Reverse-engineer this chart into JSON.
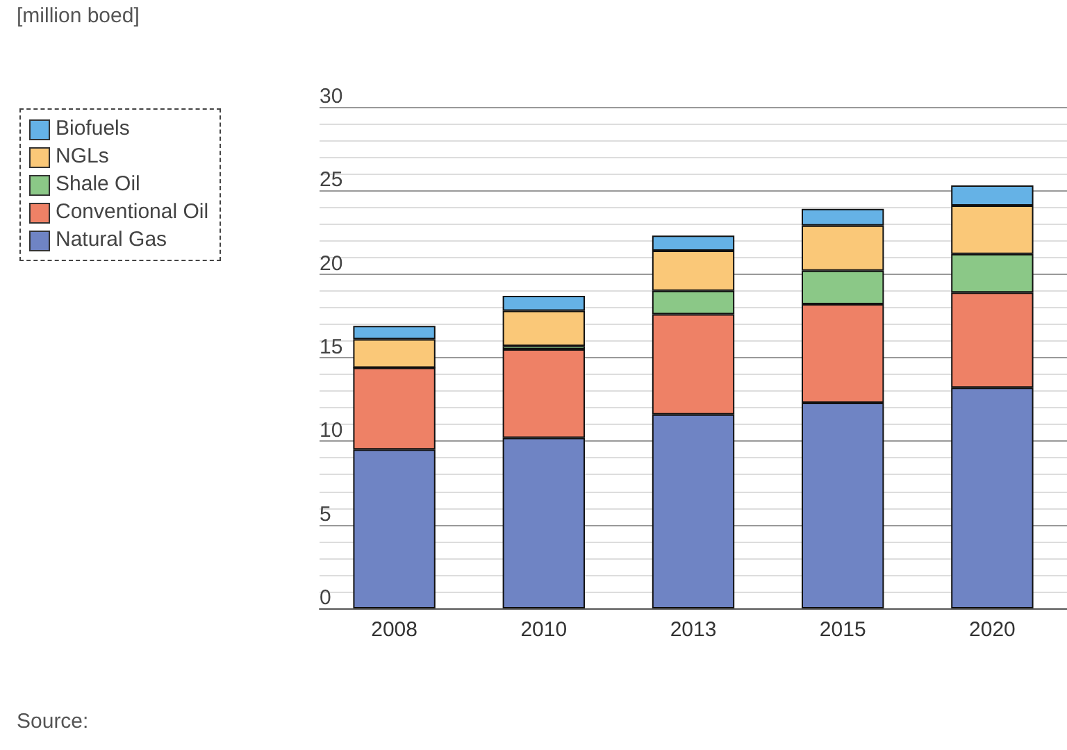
{
  "chart_data": {
    "type": "bar",
    "stacked": true,
    "annotations": [
      "[million boed]",
      "Source:"
    ],
    "categories": [
      "2008",
      "2010",
      "2013",
      "2015",
      "2020"
    ],
    "series": [
      {
        "name": "Natural Gas",
        "color": "#6f84c4",
        "values": [
          9.5,
          10.2,
          11.6,
          12.3,
          13.2
        ]
      },
      {
        "name": "Conventional Oil",
        "color": "#ee8166",
        "values": [
          4.9,
          5.3,
          6.0,
          5.9,
          5.7
        ]
      },
      {
        "name": "Shale Oil",
        "color": "#8bc887",
        "values": [
          0,
          0.2,
          1.4,
          2.0,
          2.3
        ]
      },
      {
        "name": "NGLs",
        "color": "#fac878",
        "values": [
          1.7,
          2.1,
          2.4,
          2.7,
          2.9
        ]
      },
      {
        "name": "Biofuels",
        "color": "#65b2e6",
        "values": [
          0.8,
          0.9,
          0.9,
          1.0,
          1.2
        ]
      }
    ],
    "ylim": [
      0,
      30
    ],
    "yticks": [
      0,
      5,
      10,
      15,
      20,
      25,
      30
    ],
    "grid": "y",
    "legend": "top left"
  }
}
